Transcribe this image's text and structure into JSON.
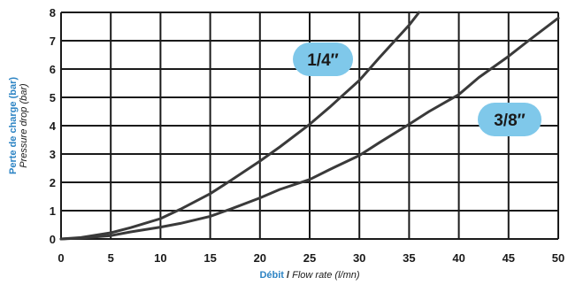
{
  "chart_data": {
    "type": "line",
    "xlabel": {
      "bold": "Débit",
      "sep": " / ",
      "italic": "Flow rate (l/mn)"
    },
    "ylabel": {
      "bold": "Perte de charge (bar)",
      "italic": "Pressure drop (bar)"
    },
    "xlim": [
      0,
      50
    ],
    "ylim": [
      0,
      8
    ],
    "xticks": [
      0,
      5,
      10,
      15,
      20,
      25,
      30,
      35,
      40,
      45,
      50
    ],
    "yticks": [
      0,
      1,
      2,
      3,
      4,
      5,
      6,
      7,
      8
    ],
    "grid": true,
    "series": [
      {
        "name": "1/4″",
        "x": [
          0,
          2,
          5,
          7,
          10,
          12,
          15,
          17,
          20,
          22,
          25,
          27,
          30,
          32,
          35,
          36
        ],
        "y": [
          0,
          0.05,
          0.22,
          0.4,
          0.72,
          1.05,
          1.6,
          2.05,
          2.75,
          3.25,
          4.05,
          4.65,
          5.6,
          6.4,
          7.55,
          8.0
        ]
      },
      {
        "name": "3/8″",
        "x": [
          0,
          2,
          5,
          7,
          10,
          12,
          15,
          17,
          20,
          22,
          25,
          27,
          30,
          32,
          35,
          37,
          40,
          42,
          45,
          47,
          50
        ],
        "y": [
          0,
          0.03,
          0.12,
          0.25,
          0.42,
          0.55,
          0.8,
          1.05,
          1.45,
          1.75,
          2.1,
          2.45,
          2.95,
          3.4,
          4.05,
          4.5,
          5.1,
          5.7,
          6.45,
          7.0,
          7.8
        ]
      }
    ],
    "colors": {
      "line": "#3a3a3a",
      "grid": "#1a1a1a",
      "badge": "#7fc8ea",
      "axis_label": "#2d84c4"
    }
  }
}
